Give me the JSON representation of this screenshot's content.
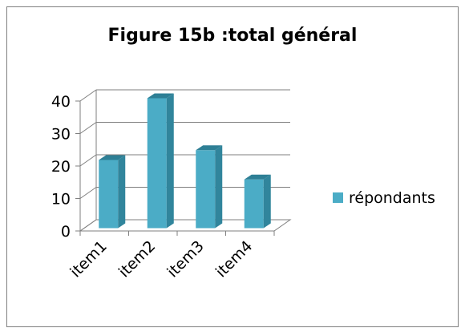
{
  "chart_data": {
    "type": "bar",
    "title": "Figure 15b :total général",
    "categories": [
      "item1",
      "item2",
      "item3",
      "item4"
    ],
    "series": [
      {
        "name": "répondants",
        "values": [
          21,
          40,
          24,
          15
        ],
        "color": "#4bacc6"
      }
    ],
    "ylim": [
      0,
      40
    ],
    "yticks": [
      0,
      10,
      20,
      30,
      40
    ],
    "grid": true,
    "legend": "right",
    "style": "3d-column"
  }
}
